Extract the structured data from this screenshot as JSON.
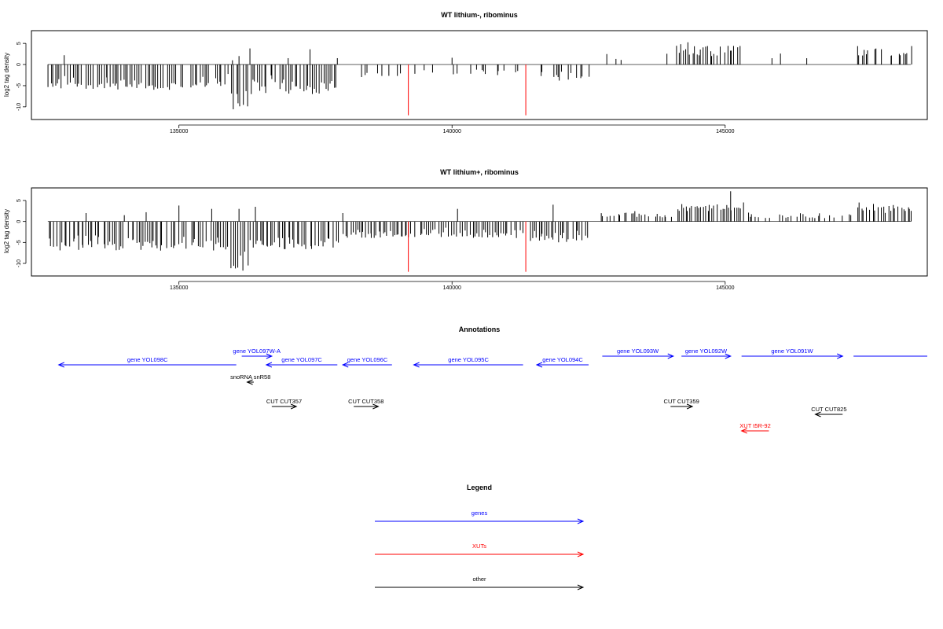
{
  "chart_data": [
    {
      "type": "bar",
      "title": "WT lithium-, ribominus",
      "ylabel": "log2 tag density",
      "xlim": [
        132300,
        148700
      ],
      "ylim": [
        -13,
        8
      ],
      "x_ticks": [
        135000,
        140000,
        145000
      ],
      "x_tick_labels": [
        "135000",
        "140000",
        "145000"
      ],
      "y_ticks": [
        -10,
        -5,
        0,
        5
      ],
      "y_tick_labels": [
        "-10",
        "-5",
        "0",
        "5"
      ],
      "bar_color": "#000000",
      "highlight_color": "#ff0000",
      "seed": 11,
      "density": 1.0,
      "regions": [
        {
          "start": 132600,
          "end": 135900,
          "min": -6,
          "max": -2,
          "sign": -1
        },
        {
          "start": 135950,
          "end": 136250,
          "min": -11,
          "max": -4,
          "sign": -1
        },
        {
          "start": 136300,
          "end": 137900,
          "min": -7,
          "max": -2,
          "sign": -1
        },
        {
          "start": 138000,
          "end": 139300,
          "min": -3,
          "max": -1,
          "sign": -1,
          "sparse": 0.35
        },
        {
          "start": 139400,
          "end": 141300,
          "min": -3,
          "max": -0.5,
          "sign": -1,
          "sparse": 0.3
        },
        {
          "start": 141600,
          "end": 142500,
          "min": -4,
          "max": -1,
          "sign": -1,
          "sparse": 0.7
        },
        {
          "start": 142700,
          "end": 144000,
          "min": 1,
          "max": 3.5,
          "sign": 1,
          "sparse": 0.2
        },
        {
          "start": 144100,
          "end": 145300,
          "min": 2,
          "max": 6.5,
          "sign": 1
        },
        {
          "start": 145400,
          "end": 147300,
          "min": 1,
          "max": 3,
          "sign": 1,
          "sparse": 0.04
        },
        {
          "start": 147400,
          "end": 148400,
          "min": 2,
          "max": 4.5,
          "sign": 1,
          "sparse": 0.6
        }
      ],
      "spikes": [
        {
          "x": 132900,
          "y": 2.2
        },
        {
          "x": 135980,
          "y": 1.0
        },
        {
          "x": 136100,
          "y": 2.0
        },
        {
          "x": 136300,
          "y": 3.8
        },
        {
          "x": 137000,
          "y": 1.5
        },
        {
          "x": 137400,
          "y": 3.6
        },
        {
          "x": 137900,
          "y": 1.5
        },
        {
          "x": 140000,
          "y": 1.6
        }
      ],
      "highlights": [
        {
          "x": 139200,
          "y": -12
        },
        {
          "x": 141350,
          "y": -12
        }
      ]
    },
    {
      "type": "bar",
      "title": "WT lithium+, ribominus",
      "ylabel": "log2 tag density",
      "xlim": [
        132300,
        148700
      ],
      "ylim": [
        -13,
        8
      ],
      "x_ticks": [
        135000,
        140000,
        145000
      ],
      "x_tick_labels": [
        "135000",
        "140000",
        "145000"
      ],
      "y_ticks": [
        -10,
        -5,
        0,
        5
      ],
      "y_tick_labels": [
        "-10",
        "-5",
        "0",
        "5"
      ],
      "bar_color": "#000000",
      "highlight_color": "#ff0000",
      "seed": 29,
      "density": 1.0,
      "regions": [
        {
          "start": 132600,
          "end": 135900,
          "min": -7,
          "max": -3,
          "sign": -1
        },
        {
          "start": 135950,
          "end": 136250,
          "min": -12,
          "max": -5,
          "sign": -1
        },
        {
          "start": 136300,
          "end": 137900,
          "min": -7,
          "max": -3,
          "sign": -1
        },
        {
          "start": 138000,
          "end": 139300,
          "min": -4,
          "max": -1.5,
          "sign": -1
        },
        {
          "start": 139400,
          "end": 141300,
          "min": -4,
          "max": -1,
          "sign": -1
        },
        {
          "start": 141400,
          "end": 142500,
          "min": -5,
          "max": -1.5,
          "sign": -1
        },
        {
          "start": 142700,
          "end": 144000,
          "min": 1,
          "max": 2.8,
          "sign": 1,
          "sparse": 0.8
        },
        {
          "start": 144100,
          "end": 145300,
          "min": 2.5,
          "max": 5.5,
          "sign": 1
        },
        {
          "start": 145400,
          "end": 147300,
          "min": 0.8,
          "max": 2.5,
          "sign": 1,
          "sparse": 0.7
        },
        {
          "start": 147400,
          "end": 148400,
          "min": 2,
          "max": 5,
          "sign": 1
        }
      ],
      "spikes": [
        {
          "x": 133300,
          "y": 2.0
        },
        {
          "x": 134000,
          "y": 1.5
        },
        {
          "x": 134400,
          "y": 2.2
        },
        {
          "x": 135000,
          "y": 3.8
        },
        {
          "x": 135600,
          "y": 3.0
        },
        {
          "x": 136100,
          "y": 3.0
        },
        {
          "x": 136400,
          "y": 3.5
        },
        {
          "x": 138000,
          "y": 2.0
        },
        {
          "x": 140100,
          "y": 3.0
        },
        {
          "x": 141850,
          "y": 4.0
        },
        {
          "x": 145100,
          "y": 7.2
        }
      ],
      "highlights": [
        {
          "x": 139200,
          "y": -12
        },
        {
          "x": 141350,
          "y": -12
        }
      ]
    },
    {
      "type": "diagram",
      "title": "Annotations",
      "xlim": [
        132300,
        148700
      ],
      "features": [
        {
          "label": "gene YOL098C",
          "start": 136050,
          "end": 132800,
          "row": 1,
          "color": "#0000ff"
        },
        {
          "label": "gene YOL097W-A",
          "start": 136150,
          "end": 136700,
          "row": 0,
          "color": "#0000ff"
        },
        {
          "label": "gene YOL097C",
          "start": 137900,
          "end": 136600,
          "row": 1,
          "color": "#0000ff"
        },
        {
          "label": "gene YOL096C",
          "start": 138900,
          "end": 138000,
          "row": 1,
          "color": "#0000ff"
        },
        {
          "label": "gene YOL095C",
          "start": 141300,
          "end": 139300,
          "row": 1,
          "color": "#0000ff"
        },
        {
          "label": "gene YOL094C",
          "start": 142500,
          "end": 141550,
          "row": 1,
          "color": "#0000ff"
        },
        {
          "label": "gene YOL093W",
          "start": 142750,
          "end": 144050,
          "row": 0,
          "color": "#0000ff"
        },
        {
          "label": "gene YOL092W",
          "start": 144200,
          "end": 145100,
          "row": 0,
          "color": "#0000ff"
        },
        {
          "label": "gene YOL091W",
          "start": 145300,
          "end": 147150,
          "row": 0,
          "color": "#0000ff"
        },
        {
          "label": "",
          "start": 147350,
          "end": 148700,
          "row": 0,
          "color": "#0000ff",
          "noHead": true
        },
        {
          "label": "snoRNA snR58",
          "start": 136370,
          "end": 136250,
          "row": 2,
          "color": "#000000"
        },
        {
          "label": "CUT CUT357",
          "start": 136700,
          "end": 137150,
          "row": 3,
          "color": "#000000"
        },
        {
          "label": "CUT CUT358",
          "start": 138200,
          "end": 138650,
          "row": 3,
          "color": "#000000"
        },
        {
          "label": "CUT CUT359",
          "start": 144000,
          "end": 144400,
          "row": 3,
          "color": "#000000"
        },
        {
          "label": "CUT CUT825",
          "start": 147150,
          "end": 146650,
          "row": 4,
          "color": "#000000"
        },
        {
          "label": "XUT t5R-92",
          "start": 145800,
          "end": 145300,
          "row": 5,
          "color": "#ff0000"
        }
      ]
    },
    {
      "type": "legend",
      "title": "Legend",
      "items": [
        {
          "label": "genes",
          "color": "#0000ff"
        },
        {
          "label": "XUTs",
          "color": "#ff0000"
        },
        {
          "label": "other",
          "color": "#000000"
        }
      ]
    }
  ]
}
